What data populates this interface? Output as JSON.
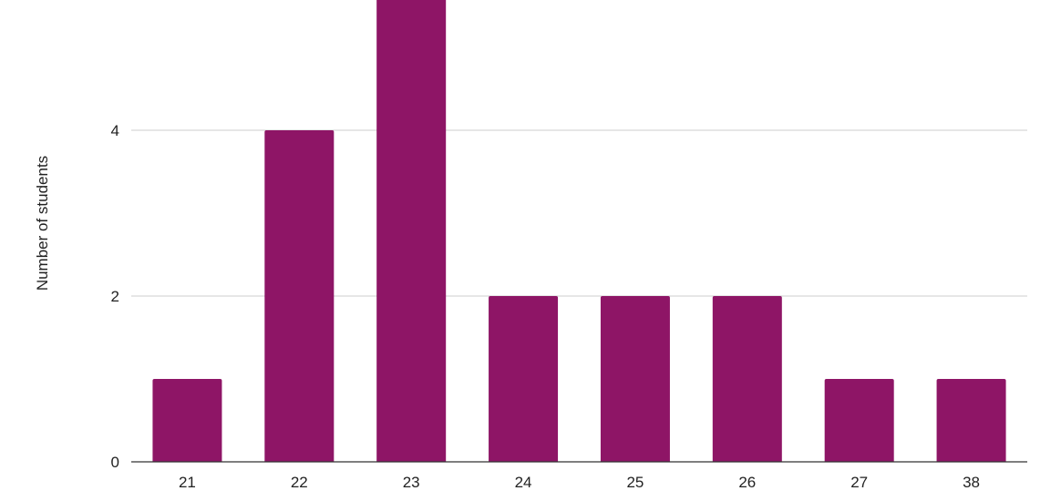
{
  "chart_data": {
    "type": "bar",
    "title": "",
    "xlabel": "",
    "ylabel": "Number of students",
    "categories": [
      "21",
      "22",
      "23",
      "24",
      "25",
      "26",
      "27",
      "38"
    ],
    "values": [
      1,
      4,
      6,
      2,
      2,
      2,
      1,
      1
    ],
    "ylim": [
      0,
      6
    ],
    "yticks": [
      0,
      2,
      4
    ],
    "grid": true,
    "legend": "none",
    "bar_color": "#8e1566",
    "grid_color": "#cccccc",
    "axis_color": "#333333"
  }
}
